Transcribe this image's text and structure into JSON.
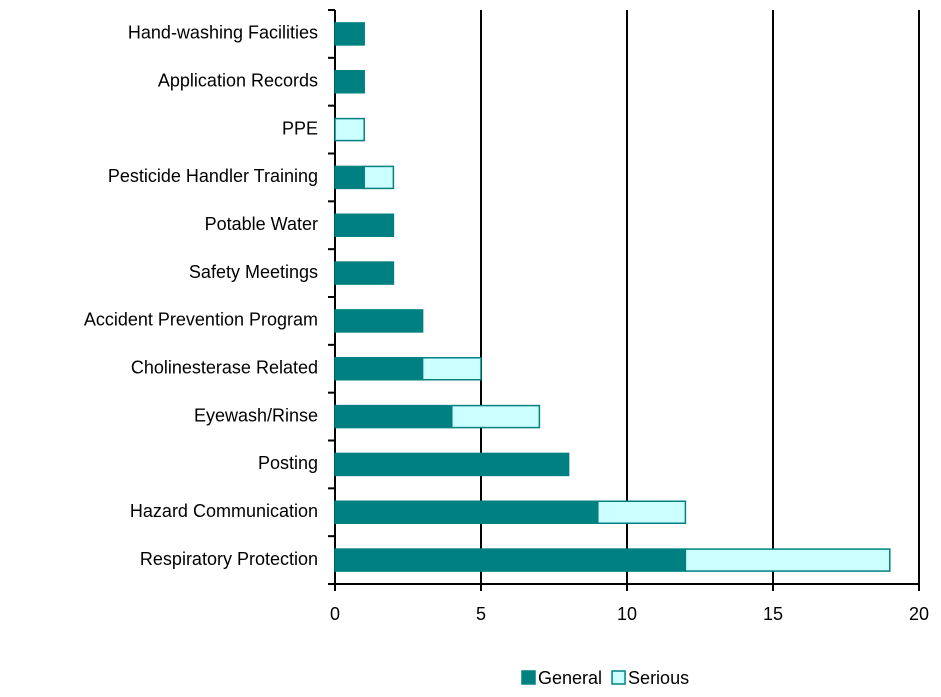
{
  "chart_data": {
    "type": "bar",
    "orientation": "horizontal",
    "stacked": true,
    "categories": [
      "Hand-washing Facilities",
      "Application Records",
      "PPE",
      "Pesticide Handler Training",
      "Potable Water",
      "Safety Meetings",
      "Accident Prevention Program",
      "Cholinesterase Related",
      "Eyewash/Rinse",
      "Posting",
      "Hazard Communication",
      "Respiratory Protection"
    ],
    "series": [
      {
        "name": "General",
        "color": "#008080",
        "values": [
          1,
          1,
          0,
          1,
          2,
          2,
          3,
          3,
          4,
          8,
          9,
          12
        ]
      },
      {
        "name": "Serious",
        "color": "#ccffff",
        "values": [
          0,
          0,
          1,
          1,
          0,
          0,
          0,
          2,
          3,
          0,
          3,
          7
        ]
      }
    ],
    "xlim": [
      0,
      20
    ],
    "xticks": [
      0,
      5,
      10,
      15,
      20
    ],
    "grid": true,
    "legend": "bottom"
  }
}
